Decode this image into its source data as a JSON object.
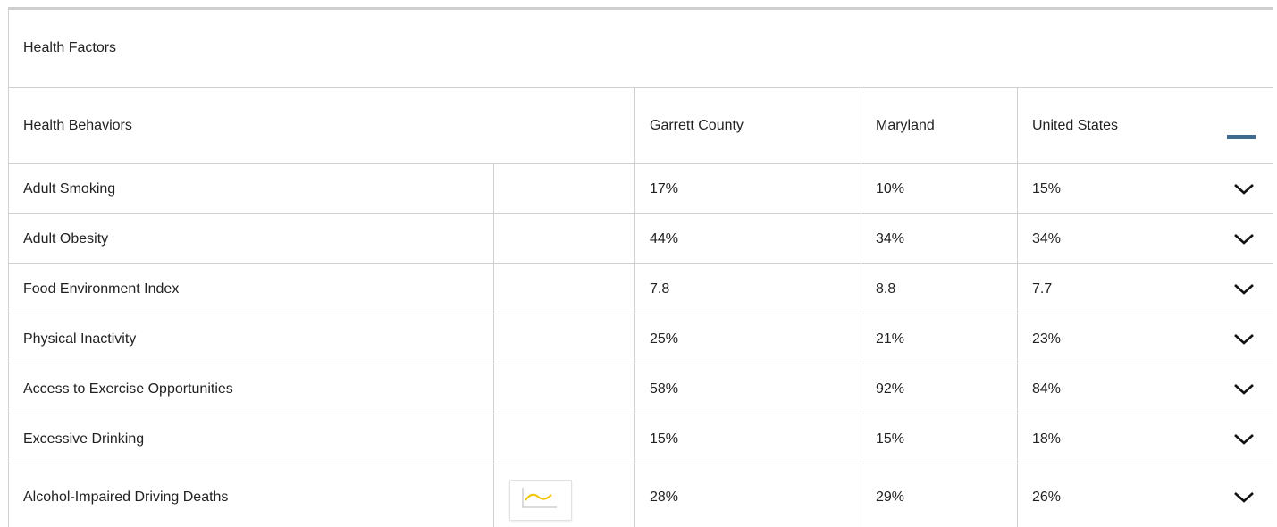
{
  "section": {
    "title": "Health Factors"
  },
  "table": {
    "header": [
      "Health Behaviors",
      "Garrett County",
      "Maryland",
      "United States"
    ],
    "rows": [
      [
        "Adult Smoking",
        "17%",
        "10%",
        "15%"
      ],
      [
        "Adult Obesity",
        "44%",
        "34%",
        "34%"
      ],
      [
        "Food Environment Index",
        "7.8",
        "8.8",
        "7.7"
      ],
      [
        "Physical Inactivity",
        "25%",
        "21%",
        "23%"
      ],
      [
        "Access to Exercise Opportunities",
        "58%",
        "92%",
        "84%"
      ],
      [
        "Excessive Drinking",
        "15%",
        "15%",
        "18%"
      ],
      [
        "Alcohol-Impaired Driving Deaths",
        "28%",
        "29%",
        "26%"
      ]
    ]
  }
}
